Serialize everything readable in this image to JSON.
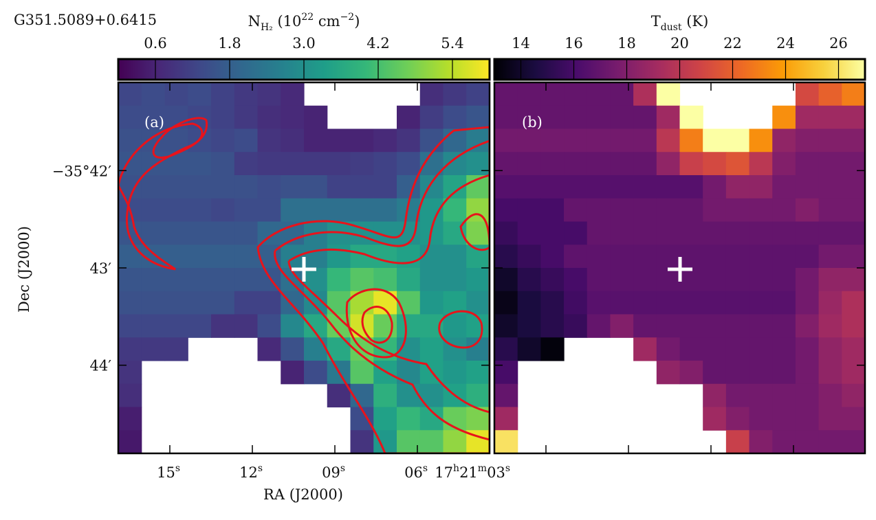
{
  "chart_data": {
    "type": "heatmap",
    "source": "G351.5089+0.6415",
    "x_label": "RA (J2000)",
    "y_label": "Dec (J2000)",
    "xlim": [
      16.875,
      3.375
    ],
    "xticks": [
      {
        "value": 15,
        "parts": [
          {
            "text": "15"
          },
          {
            "text": "s",
            "pos": "sup"
          }
        ]
      },
      {
        "value": 12,
        "parts": [
          {
            "text": "12"
          },
          {
            "text": "s",
            "pos": "sup"
          }
        ]
      },
      {
        "value": 9,
        "parts": [
          {
            "text": "09"
          },
          {
            "text": "s",
            "pos": "sup"
          }
        ]
      },
      {
        "value": 6,
        "parts": [
          {
            "text": "06"
          },
          {
            "text": "s",
            "pos": "sup"
          }
        ]
      },
      {
        "value": 3,
        "parts": [
          {
            "text": "17"
          },
          {
            "text": "h",
            "pos": "sup"
          },
          {
            "text": "21"
          },
          {
            "text": "m",
            "pos": "sup"
          },
          {
            "text": "03"
          },
          {
            "text": "s",
            "pos": "sup"
          }
        ]
      }
    ],
    "ylim": [
      41.094,
      44.906
    ],
    "yticks": [
      {
        "value": 42,
        "label": "−35°42′"
      },
      {
        "value": 43,
        "label": "43′"
      },
      {
        "value": 44,
        "label": "44′"
      }
    ],
    "panels": [
      {
        "label": "(a)",
        "colormap": "viridis",
        "colorbar": {
          "title": [
            {
              "text": "N"
            },
            {
              "text": "H₂",
              "pos": "sub"
            },
            {
              "text": " (10"
            },
            {
              "text": "22",
              "pos": "sup"
            },
            {
              "text": " cm"
            },
            {
              "text": "−2",
              "pos": "sup"
            },
            {
              "text": ")"
            }
          ],
          "clim": [
            0,
            6.0
          ],
          "ticks": [
            0.6,
            1.8,
            {
              "value": 3,
              "label": "3.0"
            },
            4.2,
            5.4
          ]
        },
        "values": [
          [
            1.3,
            1.4,
            1.3,
            1.4,
            1.2,
            1.0,
            0.9,
            0.7,
            null,
            null,
            null,
            null,
            null,
            0.8,
            1.0,
            1.2
          ],
          [
            1.4,
            1.4,
            1.4,
            1.3,
            1.2,
            1.0,
            0.8,
            0.7,
            0.6,
            null,
            null,
            null,
            0.6,
            1.1,
            1.4,
            1.6
          ],
          [
            1.5,
            1.5,
            1.5,
            1.4,
            1.3,
            1.4,
            0.9,
            0.8,
            0.6,
            0.6,
            0.6,
            0.7,
            0.9,
            1.5,
            2.0,
            2.5
          ],
          [
            1.6,
            1.6,
            1.6,
            1.6,
            1.5,
            1.1,
            1.0,
            1.0,
            1.0,
            1.0,
            1.1,
            1.2,
            1.4,
            2.2,
            2.8,
            3.0
          ],
          [
            1.5,
            1.5,
            1.5,
            1.5,
            1.5,
            1.5,
            1.4,
            1.5,
            1.5,
            1.2,
            1.2,
            1.2,
            1.8,
            2.8,
            3.5,
            4.5
          ],
          [
            1.4,
            1.4,
            1.4,
            1.4,
            1.3,
            1.4,
            1.4,
            2.2,
            2.2,
            2.2,
            2.2,
            2.2,
            2.5,
            3.2,
            4.0,
            5.0
          ],
          [
            1.6,
            1.6,
            1.6,
            1.6,
            1.6,
            1.6,
            2.0,
            2.0,
            2.6,
            3.0,
            3.0,
            3.0,
            3.0,
            3.2,
            3.6,
            4.8
          ],
          [
            1.8,
            1.8,
            1.8,
            1.8,
            1.8,
            1.8,
            1.8,
            2.6,
            2.6,
            3.2,
            3.6,
            3.6,
            3.4,
            3.0,
            3.0,
            3.5
          ],
          [
            1.6,
            1.6,
            1.6,
            1.6,
            1.6,
            1.6,
            1.6,
            2.2,
            3.0,
            4.0,
            4.4,
            4.2,
            3.6,
            3.0,
            3.0,
            3.2
          ],
          [
            1.5,
            1.5,
            1.5,
            1.5,
            1.5,
            1.2,
            1.2,
            2.0,
            2.8,
            4.4,
            5.2,
            5.8,
            4.4,
            3.2,
            3.4,
            3.0
          ],
          [
            1.3,
            1.3,
            1.3,
            1.3,
            0.9,
            0.9,
            1.4,
            2.8,
            3.6,
            4.6,
            5.6,
            4.6,
            3.6,
            3.6,
            3.2,
            3.4
          ],
          [
            1.0,
            1.0,
            1.0,
            null,
            null,
            null,
            0.7,
            1.5,
            2.6,
            3.6,
            4.6,
            4.0,
            3.0,
            3.4,
            3.0,
            2.6
          ],
          [
            0.9,
            null,
            null,
            null,
            null,
            null,
            null,
            0.6,
            1.4,
            2.4,
            4.4,
            3.4,
            2.8,
            3.4,
            3.2,
            3.4
          ],
          [
            0.8,
            null,
            null,
            null,
            null,
            null,
            null,
            null,
            null,
            0.8,
            2.0,
            3.8,
            3.0,
            3.0,
            3.4,
            3.8
          ],
          [
            0.5,
            null,
            null,
            null,
            null,
            null,
            null,
            null,
            null,
            null,
            1.4,
            3.4,
            4.0,
            3.6,
            4.6,
            4.8
          ],
          [
            0.4,
            null,
            null,
            null,
            null,
            null,
            null,
            null,
            null,
            null,
            0.9,
            3.2,
            4.4,
            4.4,
            5.0,
            5.8
          ]
        ]
      },
      {
        "label": "(b)",
        "colormap": "inferno",
        "colorbar": {
          "title": [
            {
              "text": "T"
            },
            {
              "text": "dust",
              "pos": "sub"
            },
            {
              "text": " (K)"
            }
          ],
          "clim": [
            13,
            27
          ],
          "ticks": [
            14,
            16,
            18,
            20,
            22,
            24,
            26
          ]
        },
        "values": [
          [
            17,
            17,
            17,
            17,
            17,
            17,
            19.5,
            27,
            null,
            null,
            null,
            null,
            null,
            21,
            22,
            23
          ],
          [
            17,
            17,
            17,
            17,
            17,
            17,
            17,
            19,
            27,
            null,
            null,
            null,
            23.5,
            19,
            19,
            19
          ],
          [
            17.5,
            17.5,
            17.5,
            17.5,
            17.5,
            17.5,
            17.5,
            20,
            23,
            27,
            27,
            23.5,
            18.5,
            18,
            18,
            18
          ],
          [
            17,
            17,
            17,
            17,
            17,
            17,
            17,
            18.5,
            20.5,
            21,
            21.5,
            20,
            18,
            17.5,
            17.5,
            17.5
          ],
          [
            16.5,
            16.5,
            16.5,
            16.5,
            16.5,
            16.5,
            16.5,
            16.5,
            16.5,
            17.5,
            18.5,
            18.5,
            17.5,
            17.5,
            17.5,
            17.5
          ],
          [
            16,
            16,
            16,
            17,
            17,
            17,
            17,
            17,
            17,
            17.5,
            17.5,
            17.5,
            17.5,
            18,
            17.5,
            17.5
          ],
          [
            15.5,
            16,
            16,
            16,
            17,
            17,
            17,
            17,
            17,
            17,
            17,
            17,
            17,
            17,
            17,
            17
          ],
          [
            15,
            15.5,
            16,
            16.8,
            16.8,
            16.8,
            16.8,
            16.8,
            16.8,
            16.8,
            16.8,
            16.8,
            16.8,
            16.8,
            17.5,
            17.5
          ],
          [
            14,
            15,
            15.5,
            16,
            16.8,
            16.8,
            16.8,
            16.8,
            16.8,
            16.8,
            16.8,
            16.8,
            16.8,
            17.5,
            18.5,
            18.5
          ],
          [
            13.5,
            14.5,
            15,
            15.8,
            16.6,
            16.6,
            16.6,
            16.6,
            16.6,
            16.6,
            16.6,
            16.6,
            16.6,
            17.5,
            18.8,
            19.5
          ],
          [
            14,
            14.5,
            15,
            15.5,
            17,
            18,
            17,
            17,
            17,
            17,
            17,
            17,
            17,
            18,
            19,
            19.5
          ],
          [
            15,
            14,
            13.2,
            null,
            null,
            null,
            19,
            17.5,
            17,
            17,
            17,
            17,
            17,
            17.5,
            18.5,
            19
          ],
          [
            16,
            null,
            null,
            null,
            null,
            null,
            null,
            18.5,
            18,
            17,
            17,
            17,
            17,
            17.5,
            18.5,
            19
          ],
          [
            17,
            null,
            null,
            null,
            null,
            null,
            null,
            null,
            null,
            18.5,
            17.5,
            17.5,
            17.5,
            17.5,
            18,
            18.5
          ],
          [
            19,
            null,
            null,
            null,
            null,
            null,
            null,
            null,
            null,
            19,
            18,
            17.5,
            17.5,
            17.5,
            18,
            18
          ],
          [
            26,
            null,
            null,
            null,
            null,
            null,
            null,
            null,
            null,
            null,
            20.5,
            18,
            17.5,
            17.5,
            17.5,
            17.5
          ]
        ]
      }
    ]
  }
}
